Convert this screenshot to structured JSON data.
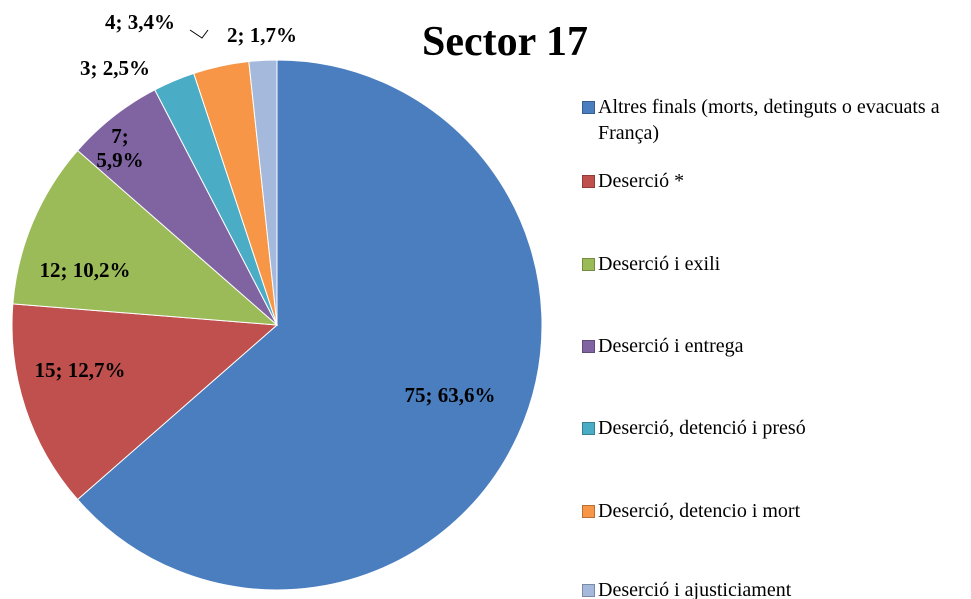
{
  "chart_data": {
    "type": "pie",
    "title": "Sector 17",
    "categories": [
      "Altres finals (morts, detinguts o evacuats a França)",
      "Deserció *",
      "Deserció i exili",
      "Deserció i entrega",
      "Deserció, detenció i presó",
      "Deserció, detencio i mort",
      "Deserció i ajusticiament"
    ],
    "values": [
      75,
      15,
      12,
      7,
      3,
      4,
      2
    ],
    "value_labels": [
      "75; 63,6%",
      "15; 12,7%",
      "12; 10,2%",
      "7; 5,9%",
      "3; 2,5%",
      "4; 3,4%",
      "2; 1,7%"
    ],
    "colors": [
      "#4a7ebf",
      "#c0504d",
      "#9bbb59",
      "#8064a2",
      "#4bacc6",
      "#f79646",
      "#a5b9dc"
    ],
    "legend": "right"
  }
}
